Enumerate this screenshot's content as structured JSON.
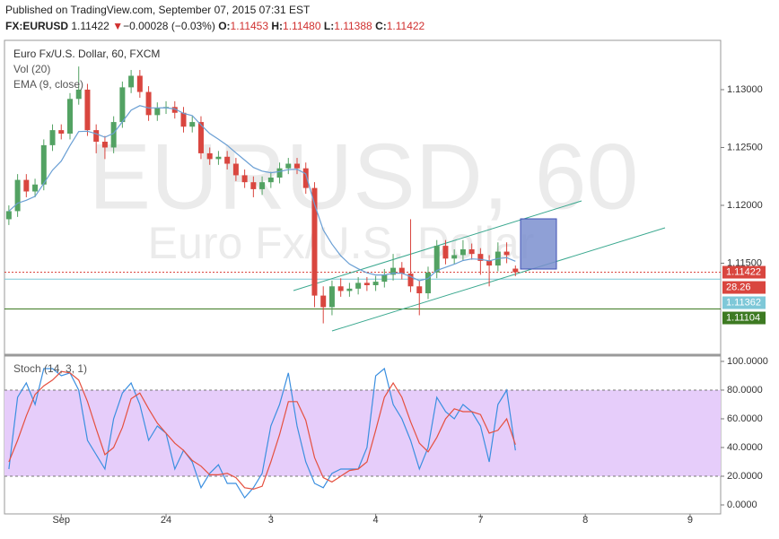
{
  "header": {
    "published": "Published on TradingView.com, September 07, 2015 07:31 EST",
    "symbol": "FX:EURUSD",
    "last": "1.11422",
    "change": "−0.00028 (−0.03%)",
    "quote": [
      {
        "label": "O:",
        "value": "1.11453"
      },
      {
        "label": "H:",
        "value": "1.11480"
      },
      {
        "label": "L:",
        "value": "1.11388"
      },
      {
        "label": "C:",
        "value": "1.11422"
      }
    ]
  },
  "chart_data": [
    {
      "type": "candlestick",
      "title": "Euro Fx/U.S. Dollar, 60, FXCM",
      "studies": [
        "Vol (20)"
      ],
      "watermark": {
        "symbol": "EURUSD, 60",
        "name": "Euro Fx/U.S. Dollar"
      },
      "x": [
        -12,
        -10,
        -8,
        -6,
        -4,
        -2,
        0,
        2,
        4,
        6,
        8,
        10,
        12,
        14,
        16,
        18,
        20,
        22,
        24,
        26,
        28,
        30,
        32,
        34,
        36,
        38,
        40,
        42,
        44,
        46,
        48,
        50,
        52,
        54,
        56,
        58,
        60,
        62,
        64,
        66,
        68,
        70,
        72,
        74,
        76,
        78,
        80,
        82,
        84,
        86,
        88,
        90,
        92,
        94,
        96,
        98,
        100,
        102,
        104
      ],
      "open": [
        1.1188,
        1.1195,
        1.1222,
        1.1212,
        1.1218,
        1.1252,
        1.1265,
        1.1262,
        1.1292,
        1.13,
        1.1265,
        1.1255,
        1.125,
        1.1272,
        1.1302,
        1.1312,
        1.1298,
        1.1278,
        1.1284,
        1.1285,
        1.128,
        1.1268,
        1.1272,
        1.1245,
        1.124,
        1.1242,
        1.1236,
        1.1226,
        1.122,
        1.1214,
        1.122,
        1.1224,
        1.1232,
        1.1236,
        1.1232,
        1.1215,
        1.1122,
        1.1112,
        1.113,
        1.1126,
        1.1128,
        1.1133,
        1.1131,
        1.1134,
        1.114,
        1.1146,
        1.1141,
        1.113,
        1.1124,
        1.1142,
        1.1165,
        1.1154,
        1.1157,
        1.1162,
        1.1158,
        1.1152,
        1.1148,
        1.116,
        1.11453
      ],
      "high": [
        1.12,
        1.1227,
        1.1227,
        1.1223,
        1.1257,
        1.127,
        1.127,
        1.1297,
        1.132,
        1.1305,
        1.127,
        1.126,
        1.1277,
        1.1307,
        1.1317,
        1.1317,
        1.1303,
        1.1289,
        1.129,
        1.129,
        1.1285,
        1.1277,
        1.1277,
        1.125,
        1.1247,
        1.1247,
        1.1241,
        1.1231,
        1.1225,
        1.1225,
        1.1229,
        1.1237,
        1.1241,
        1.1241,
        1.1237,
        1.122,
        1.113,
        1.1135,
        1.1137,
        1.1133,
        1.1138,
        1.1138,
        1.1139,
        1.1145,
        1.1158,
        1.1151,
        1.1188,
        1.1135,
        1.1147,
        1.117,
        1.117,
        1.1162,
        1.117,
        1.1167,
        1.1163,
        1.1157,
        1.1168,
        1.1168,
        1.1148
      ],
      "low": [
        1.1183,
        1.119,
        1.1207,
        1.1207,
        1.1213,
        1.1247,
        1.1257,
        1.1257,
        1.1287,
        1.126,
        1.1245,
        1.124,
        1.1245,
        1.1267,
        1.1297,
        1.1293,
        1.1273,
        1.1273,
        1.1279,
        1.1275,
        1.1263,
        1.1263,
        1.124,
        1.1235,
        1.1235,
        1.1231,
        1.1221,
        1.1215,
        1.1207,
        1.1209,
        1.1215,
        1.1219,
        1.1227,
        1.1227,
        1.121,
        1.1112,
        1.1098,
        1.1105,
        1.1121,
        1.1121,
        1.1123,
        1.1126,
        1.1126,
        1.1129,
        1.1135,
        1.1136,
        1.1125,
        1.1105,
        1.1119,
        1.1137,
        1.1149,
        1.1149,
        1.1152,
        1.1153,
        1.114,
        1.113,
        1.1143,
        1.115,
        1.11388
      ],
      "close": [
        1.1195,
        1.1222,
        1.1212,
        1.1218,
        1.1252,
        1.1265,
        1.1262,
        1.1292,
        1.13,
        1.1265,
        1.1255,
        1.125,
        1.1272,
        1.1302,
        1.1312,
        1.1298,
        1.1278,
        1.1284,
        1.1285,
        1.128,
        1.1268,
        1.1272,
        1.1245,
        1.124,
        1.1242,
        1.1236,
        1.1226,
        1.122,
        1.1214,
        1.122,
        1.1224,
        1.1232,
        1.1236,
        1.1232,
        1.1215,
        1.1122,
        1.1112,
        1.113,
        1.1126,
        1.1128,
        1.1133,
        1.1131,
        1.1134,
        1.114,
        1.1146,
        1.1141,
        1.113,
        1.1124,
        1.1142,
        1.1165,
        1.1154,
        1.1157,
        1.1162,
        1.1158,
        1.1152,
        1.1148,
        1.116,
        1.1157,
        1.11422
      ],
      "up_color": "#53a263",
      "down_color": "#d9463f",
      "series": [
        {
          "name": "EMA (9, close)",
          "color": "#6a9fd4",
          "values": [
            1.1195,
            1.12018,
            1.12044,
            1.12078,
            1.12189,
            1.12304,
            1.12383,
            1.12517,
            1.12638,
            1.12641,
            1.12618,
            1.12589,
            1.12622,
            1.12722,
            1.12822,
            1.12862,
            1.12842,
            1.12842,
            1.12844,
            1.12833,
            1.12795,
            1.12776,
            1.12695,
            1.12621,
            1.12571,
            1.12518,
            1.12454,
            1.12391,
            1.12328,
            1.12296,
            1.12282,
            1.12292,
            1.12309,
            1.12312,
            1.12272,
            1.12009,
            1.11787,
            1.11665,
            1.11564,
            1.11493,
            1.11452,
            1.11417,
            1.11398,
            1.11398,
            1.11414,
            1.11413,
            1.11385,
            1.11349,
            1.11367,
            1.11438,
            1.11464,
            1.11491,
            1.11523,
            1.11537,
            1.11533,
            1.1152,
            1.1154,
            1.11548,
            1.11517
          ]
        }
      ],
      "price_lines": [
        {
          "value": 1.11422,
          "color": "#d9463f"
        },
        {
          "value": 1.11362,
          "color": "#7ec8d8"
        },
        {
          "value": 1.11104,
          "color": "#3d7a22"
        }
      ],
      "badge": "28.26",
      "badge_color": "#d9463f",
      "xlim": [
        -13,
        151
      ],
      "xticks": [
        {
          "value": 0,
          "label": "Sep"
        },
        24,
        {
          "value": 48,
          "label": "3"
        },
        {
          "value": 72,
          "label": "4"
        },
        {
          "value": 96,
          "label": "7"
        },
        {
          "value": 120,
          "label": "8"
        },
        {
          "value": 144,
          "label": "9"
        }
      ],
      "ylim": [
        1.10713,
        1.13426
      ],
      "yticks": [
        {
          "value": 1.13,
          "label": "1.13000"
        },
        {
          "value": 1.125,
          "label": "1.12500"
        },
        {
          "value": 1.12,
          "label": "1.12000"
        },
        {
          "value": 1.115,
          "label": "1.11500"
        }
      ]
    },
    {
      "type": "line",
      "title": "Stoch (14, 3, 1)",
      "series": [
        {
          "color": "#3b8fe0",
          "values": [
            25,
            75,
            85,
            70,
            95,
            95,
            90,
            92,
            80,
            45,
            35,
            25,
            60,
            78,
            85,
            70,
            45,
            55,
            50,
            25,
            38,
            30,
            12,
            22,
            28,
            15,
            15,
            5,
            12,
            22,
            55,
            70,
            92,
            55,
            30,
            15,
            12,
            22,
            25,
            25,
            25,
            40,
            90,
            95,
            70,
            60,
            45,
            25,
            40,
            75,
            65,
            60,
            70,
            65,
            55,
            30,
            70,
            80,
            38
          ]
        },
        {
          "color": "#e5503f",
          "values": [
            30,
            45,
            62,
            77,
            83,
            87,
            93,
            92,
            87,
            72,
            53,
            35,
            40,
            54,
            74,
            78,
            67,
            57,
            50,
            43,
            38,
            31,
            27,
            21,
            21,
            22,
            19,
            12,
            11,
            13,
            30,
            49,
            72,
            72,
            59,
            33,
            19,
            16,
            20,
            24,
            25,
            30,
            52,
            75,
            85,
            75,
            58,
            43,
            37,
            47,
            60,
            67,
            65,
            65,
            63,
            50,
            52,
            60,
            42
          ]
        }
      ],
      "band": [
        20,
        80
      ],
      "band_color": "#e6cdfa",
      "ylim": [
        -6.25,
        103.1
      ],
      "yticks": [
        {
          "value": 0,
          "label": "0.0000"
        },
        {
          "value": 20,
          "label": "20.0000"
        },
        {
          "value": 40,
          "label": "40.0000"
        },
        {
          "value": 60,
          "label": "60.0000"
        },
        {
          "value": 80,
          "label": "80.0000"
        },
        {
          "value": 100,
          "label": "100.0000"
        }
      ]
    }
  ]
}
